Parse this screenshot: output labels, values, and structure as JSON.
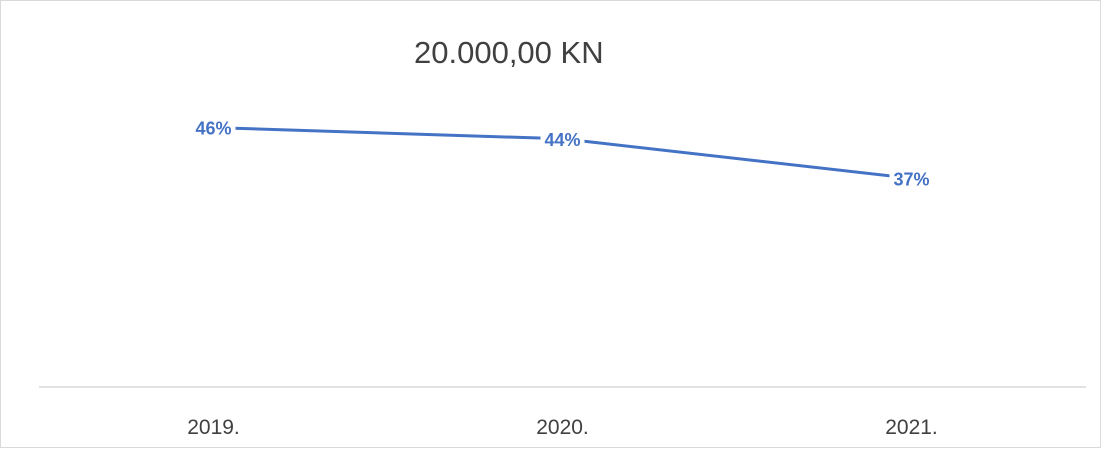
{
  "chart_data": {
    "type": "line",
    "title": "20.000,00 KN",
    "categories": [
      "2019.",
      "2020.",
      "2021."
    ],
    "series": [
      {
        "values": [
          46,
          44,
          37
        ],
        "labels": [
          "46%",
          "44%",
          "37%"
        ],
        "color": "#4472c4"
      }
    ],
    "ylim": [
      0,
      60
    ],
    "grid": false,
    "legend": "none",
    "axis_color": "#d9d9d9",
    "tick_label_color": "#404040"
  }
}
